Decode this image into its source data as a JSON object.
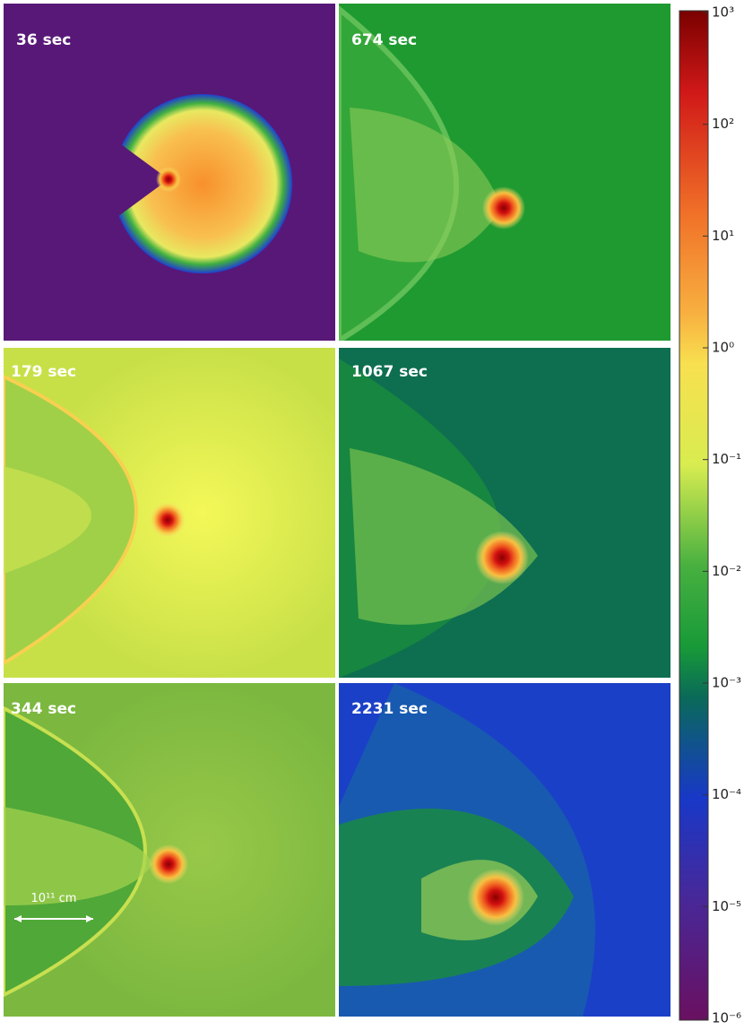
{
  "panels": [
    {
      "label": "36 sec"
    },
    {
      "label": "674 sec"
    },
    {
      "label": "179 sec"
    },
    {
      "label": "1067 sec"
    },
    {
      "label": "344 sec"
    },
    {
      "label": "2231 sec"
    }
  ],
  "scale_bar": {
    "label": "10¹¹ cm"
  },
  "colorbar": {
    "ticks": [
      {
        "value": 1000,
        "label": "10³"
      },
      {
        "value": 100,
        "label": "10²"
      },
      {
        "value": 10,
        "label": "10¹"
      },
      {
        "value": 1,
        "label": "10⁰"
      },
      {
        "value": 0.1,
        "label": "10⁻¹"
      },
      {
        "value": 0.01,
        "label": "10⁻²"
      },
      {
        "value": 0.001,
        "label": "10⁻³"
      },
      {
        "value": 0.0001,
        "label": "10⁻⁴"
      },
      {
        "value": 1e-05,
        "label": "10⁻⁵"
      },
      {
        "value": 1e-06,
        "label": "10⁻⁶"
      }
    ]
  }
}
